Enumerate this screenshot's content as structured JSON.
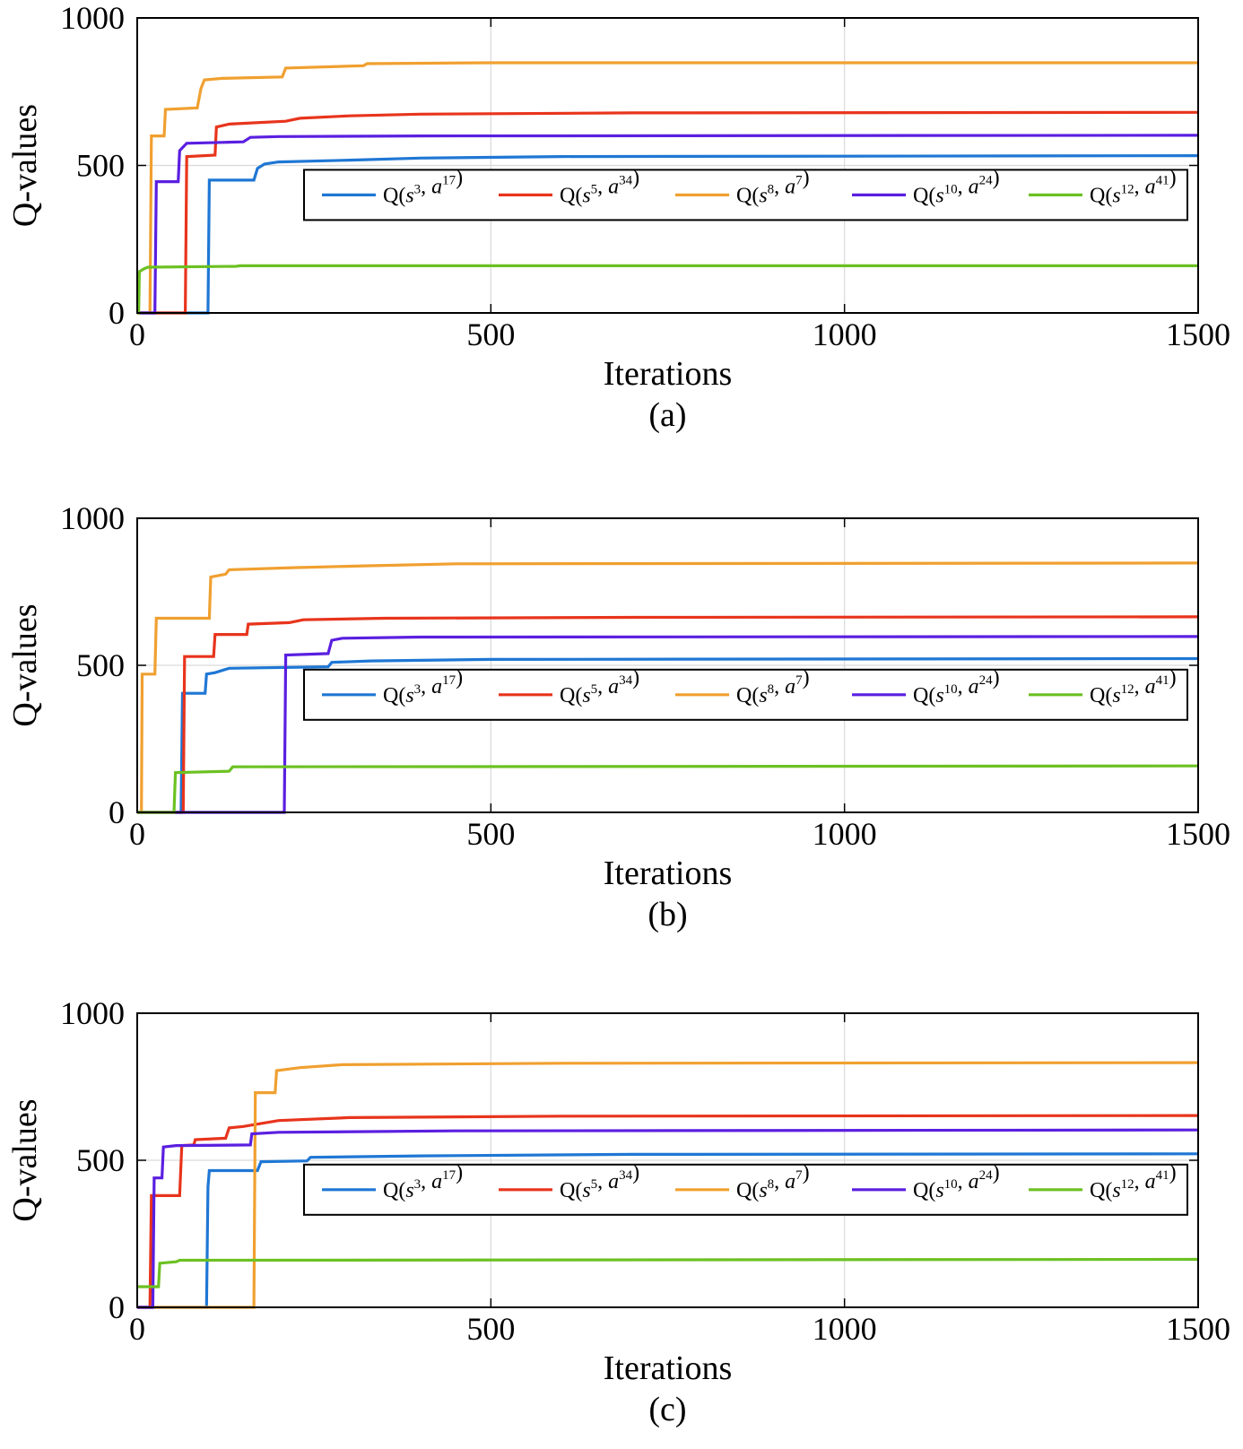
{
  "chart_data": [
    {
      "type": "line",
      "panel_label": "(a)",
      "xlabel": "Iterations",
      "ylabel": "Q-values",
      "xlim": [
        0,
        1500
      ],
      "ylim": [
        0,
        1000
      ],
      "xticks": [
        0,
        500,
        1000,
        1500
      ],
      "yticks": [
        0,
        500,
        1000
      ],
      "grid": true,
      "legend_position": "center-right, single row",
      "series": [
        {
          "name": "Q(s3, a17)",
          "state": "3",
          "action": "17",
          "color": "#1f77d4",
          "points": [
            [
              0,
              0
            ],
            [
              100,
              0
            ],
            [
              102,
              450
            ],
            [
              165,
              450
            ],
            [
              170,
              490
            ],
            [
              180,
              505
            ],
            [
              200,
              512
            ],
            [
              300,
              518
            ],
            [
              400,
              525
            ],
            [
              600,
              530
            ],
            [
              1500,
              533
            ]
          ]
        },
        {
          "name": "Q(s5, a34)",
          "state": "5",
          "action": "34",
          "color": "#e8341c",
          "points": [
            [
              0,
              0
            ],
            [
              68,
              0
            ],
            [
              70,
              530
            ],
            [
              110,
              535
            ],
            [
              112,
              630
            ],
            [
              130,
              640
            ],
            [
              210,
              650
            ],
            [
              230,
              660
            ],
            [
              300,
              668
            ],
            [
              400,
              674
            ],
            [
              700,
              678
            ],
            [
              1500,
              680
            ]
          ]
        },
        {
          "name": "Q(s8, a7)",
          "state": "8",
          "action": "7",
          "color": "#f0a030",
          "points": [
            [
              0,
              0
            ],
            [
              18,
              0
            ],
            [
              20,
              600
            ],
            [
              38,
              600
            ],
            [
              40,
              690
            ],
            [
              85,
              695
            ],
            [
              90,
              760
            ],
            [
              95,
              790
            ],
            [
              120,
              795
            ],
            [
              205,
              800
            ],
            [
              210,
              830
            ],
            [
              320,
              838
            ],
            [
              325,
              845
            ],
            [
              500,
              848
            ],
            [
              1500,
              848
            ]
          ]
        },
        {
          "name": "Q(s10, a24)",
          "state": "10",
          "action": "24",
          "color": "#5a1fe0",
          "points": [
            [
              0,
              0
            ],
            [
              25,
              0
            ],
            [
              27,
              445
            ],
            [
              58,
              445
            ],
            [
              60,
              550
            ],
            [
              70,
              575
            ],
            [
              120,
              578
            ],
            [
              150,
              580
            ],
            [
              160,
              595
            ],
            [
              200,
              598
            ],
            [
              400,
              600
            ],
            [
              1500,
              602
            ]
          ]
        },
        {
          "name": "Q(s12, a41)",
          "state": "12",
          "action": "41",
          "color": "#6cc122",
          "points": [
            [
              0,
              0
            ],
            [
              2,
              0
            ],
            [
              3,
              140
            ],
            [
              10,
              150
            ],
            [
              15,
              155
            ],
            [
              140,
              158
            ],
            [
              145,
              160
            ],
            [
              1500,
              160
            ]
          ]
        }
      ]
    },
    {
      "type": "line",
      "panel_label": "(b)",
      "xlabel": "Iterations",
      "ylabel": "Q-values",
      "xlim": [
        0,
        1500
      ],
      "ylim": [
        0,
        1000
      ],
      "xticks": [
        0,
        500,
        1000,
        1500
      ],
      "yticks": [
        0,
        500,
        1000
      ],
      "grid": true,
      "legend_position": "center-right, single row",
      "series": [
        {
          "name": "Q(s3, a17)",
          "state": "3",
          "action": "17",
          "color": "#1f77d4",
          "points": [
            [
              0,
              0
            ],
            [
              62,
              0
            ],
            [
              64,
              405
            ],
            [
              96,
              405
            ],
            [
              98,
              470
            ],
            [
              110,
              475
            ],
            [
              130,
              490
            ],
            [
              270,
              495
            ],
            [
              275,
              510
            ],
            [
              330,
              515
            ],
            [
              500,
              520
            ],
            [
              1500,
              523
            ]
          ]
        },
        {
          "name": "Q(s5, a34)",
          "state": "5",
          "action": "34",
          "color": "#e8341c",
          "points": [
            [
              0,
              0
            ],
            [
              65,
              0
            ],
            [
              67,
              530
            ],
            [
              108,
              530
            ],
            [
              110,
              605
            ],
            [
              155,
              605
            ],
            [
              157,
              640
            ],
            [
              215,
              645
            ],
            [
              235,
              655
            ],
            [
              350,
              660
            ],
            [
              700,
              663
            ],
            [
              1500,
              665
            ]
          ]
        },
        {
          "name": "Q(s8, a7)",
          "state": "8",
          "action": "7",
          "color": "#f0a030",
          "points": [
            [
              0,
              0
            ],
            [
              6,
              0
            ],
            [
              7,
              470
            ],
            [
              25,
              470
            ],
            [
              27,
              660
            ],
            [
              102,
              660
            ],
            [
              104,
              800
            ],
            [
              125,
              810
            ],
            [
              130,
              825
            ],
            [
              220,
              832
            ],
            [
              320,
              838
            ],
            [
              450,
              845
            ],
            [
              1500,
              848
            ]
          ]
        },
        {
          "name": "Q(s10, a24)",
          "state": "10",
          "action": "24",
          "color": "#5a1fe0",
          "points": [
            [
              0,
              0
            ],
            [
              208,
              0
            ],
            [
              210,
              535
            ],
            [
              270,
              540
            ],
            [
              275,
              585
            ],
            [
              290,
              592
            ],
            [
              400,
              596
            ],
            [
              1500,
              598
            ]
          ]
        },
        {
          "name": "Q(s12, a41)",
          "state": "12",
          "action": "41",
          "color": "#6cc122",
          "points": [
            [
              0,
              0
            ],
            [
              52,
              0
            ],
            [
              54,
              135
            ],
            [
              130,
              140
            ],
            [
              135,
              155
            ],
            [
              1500,
              158
            ]
          ]
        }
      ]
    },
    {
      "type": "line",
      "panel_label": "(c)",
      "xlabel": "Iterations",
      "ylabel": "Q-values",
      "xlim": [
        0,
        1500
      ],
      "ylim": [
        0,
        1000
      ],
      "xticks": [
        0,
        500,
        1000,
        1500
      ],
      "yticks": [
        0,
        500,
        1000
      ],
      "grid": true,
      "legend_position": "center-right, single row",
      "series": [
        {
          "name": "Q(s3, a17)",
          "state": "3",
          "action": "17",
          "color": "#1f77d4",
          "points": [
            [
              0,
              0
            ],
            [
              98,
              0
            ],
            [
              100,
              410
            ],
            [
              102,
              465
            ],
            [
              170,
              465
            ],
            [
              175,
              495
            ],
            [
              240,
              498
            ],
            [
              245,
              510
            ],
            [
              400,
              515
            ],
            [
              700,
              520
            ],
            [
              1500,
              522
            ]
          ]
        },
        {
          "name": "Q(s5, a34)",
          "state": "5",
          "action": "34",
          "color": "#e8341c",
          "points": [
            [
              0,
              0
            ],
            [
              18,
              0
            ],
            [
              20,
              380
            ],
            [
              60,
              380
            ],
            [
              63,
              550
            ],
            [
              80,
              552
            ],
            [
              82,
              570
            ],
            [
              125,
              575
            ],
            [
              130,
              610
            ],
            [
              150,
              615
            ],
            [
              200,
              635
            ],
            [
              300,
              645
            ],
            [
              600,
              650
            ],
            [
              1500,
              652
            ]
          ]
        },
        {
          "name": "Q(s8, a7)",
          "state": "8",
          "action": "7",
          "color": "#f0a030",
          "points": [
            [
              0,
              0
            ],
            [
              165,
              0
            ],
            [
              167,
              730
            ],
            [
              195,
              730
            ],
            [
              197,
              805
            ],
            [
              230,
              815
            ],
            [
              290,
              825
            ],
            [
              600,
              830
            ],
            [
              1500,
              832
            ]
          ]
        },
        {
          "name": "Q(s10, a24)",
          "state": "10",
          "action": "24",
          "color": "#5a1fe0",
          "points": [
            [
              0,
              0
            ],
            [
              22,
              0
            ],
            [
              24,
              440
            ],
            [
              35,
              440
            ],
            [
              37,
              545
            ],
            [
              55,
              550
            ],
            [
              160,
              552
            ],
            [
              162,
              590
            ],
            [
              200,
              595
            ],
            [
              450,
              600
            ],
            [
              1500,
              603
            ]
          ]
        },
        {
          "name": "Q(s12, a41)",
          "state": "12",
          "action": "41",
          "color": "#6cc122",
          "points": [
            [
              0,
              70
            ],
            [
              30,
              70
            ],
            [
              32,
              150
            ],
            [
              55,
              155
            ],
            [
              60,
              160
            ],
            [
              1500,
              163
            ]
          ]
        }
      ]
    }
  ]
}
